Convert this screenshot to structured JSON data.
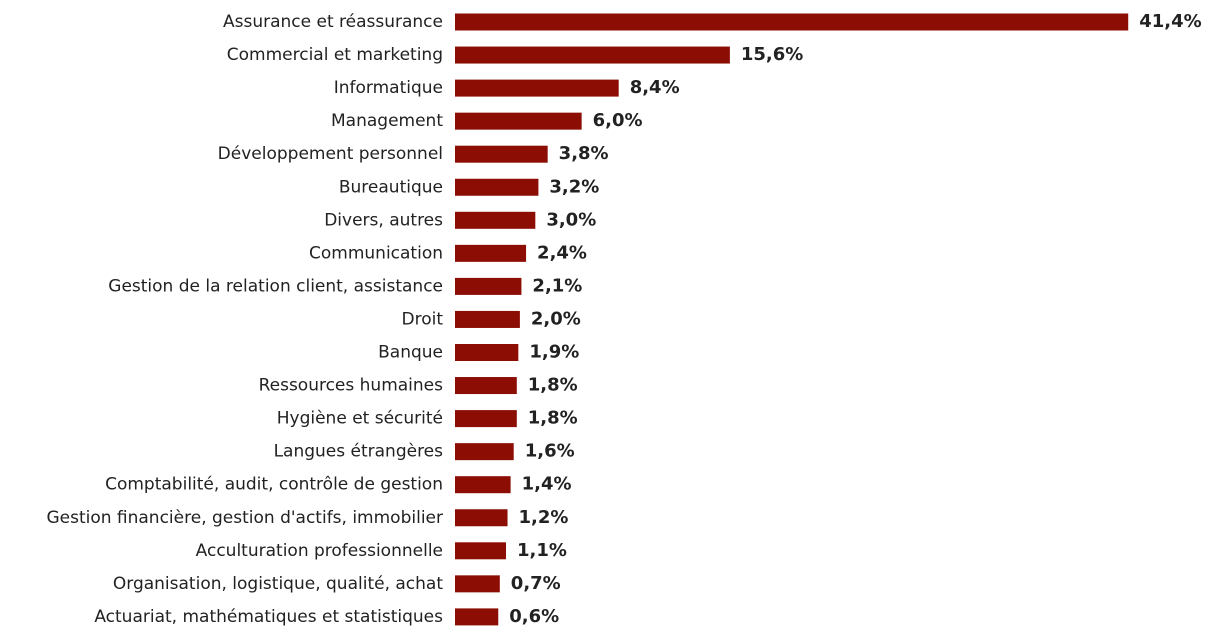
{
  "chart_data": {
    "type": "barh",
    "color": "#8b0d04",
    "categories": [
      "Assurance et réassurance",
      "Commercial et marketing",
      "Informatique",
      "Management",
      "Développement personnel",
      "Bureautique",
      "Divers, autres",
      "Communication",
      "Gestion de la relation client, assistance",
      "Droit",
      "Banque",
      "Ressources humaines",
      "Hygiène et sécurité",
      "Langues étrangères",
      "Comptabilité, audit, contrôle de gestion",
      "Gestion financière, gestion d'actifs, immobilier",
      "Acculturation professionnelle",
      "Organisation, logistique, qualité, achat",
      "Actuariat, mathématiques et statistiques"
    ],
    "values": [
      41.4,
      15.6,
      8.4,
      6.0,
      3.8,
      3.2,
      3.0,
      2.4,
      2.1,
      2.0,
      1.9,
      1.8,
      1.8,
      1.6,
      1.4,
      1.2,
      1.1,
      0.7,
      0.6
    ],
    "value_labels": [
      "41,4%",
      "15,6%",
      "8,4%",
      "6,0%",
      "3,8%",
      "3,2%",
      "3,0%",
      "2,4%",
      "2,1%",
      "2,0%",
      "1,9%",
      "1,8%",
      "1,8%",
      "1,6%",
      "1,4%",
      "1,2%",
      "1,1%",
      "0,7%",
      "0,6%"
    ]
  }
}
